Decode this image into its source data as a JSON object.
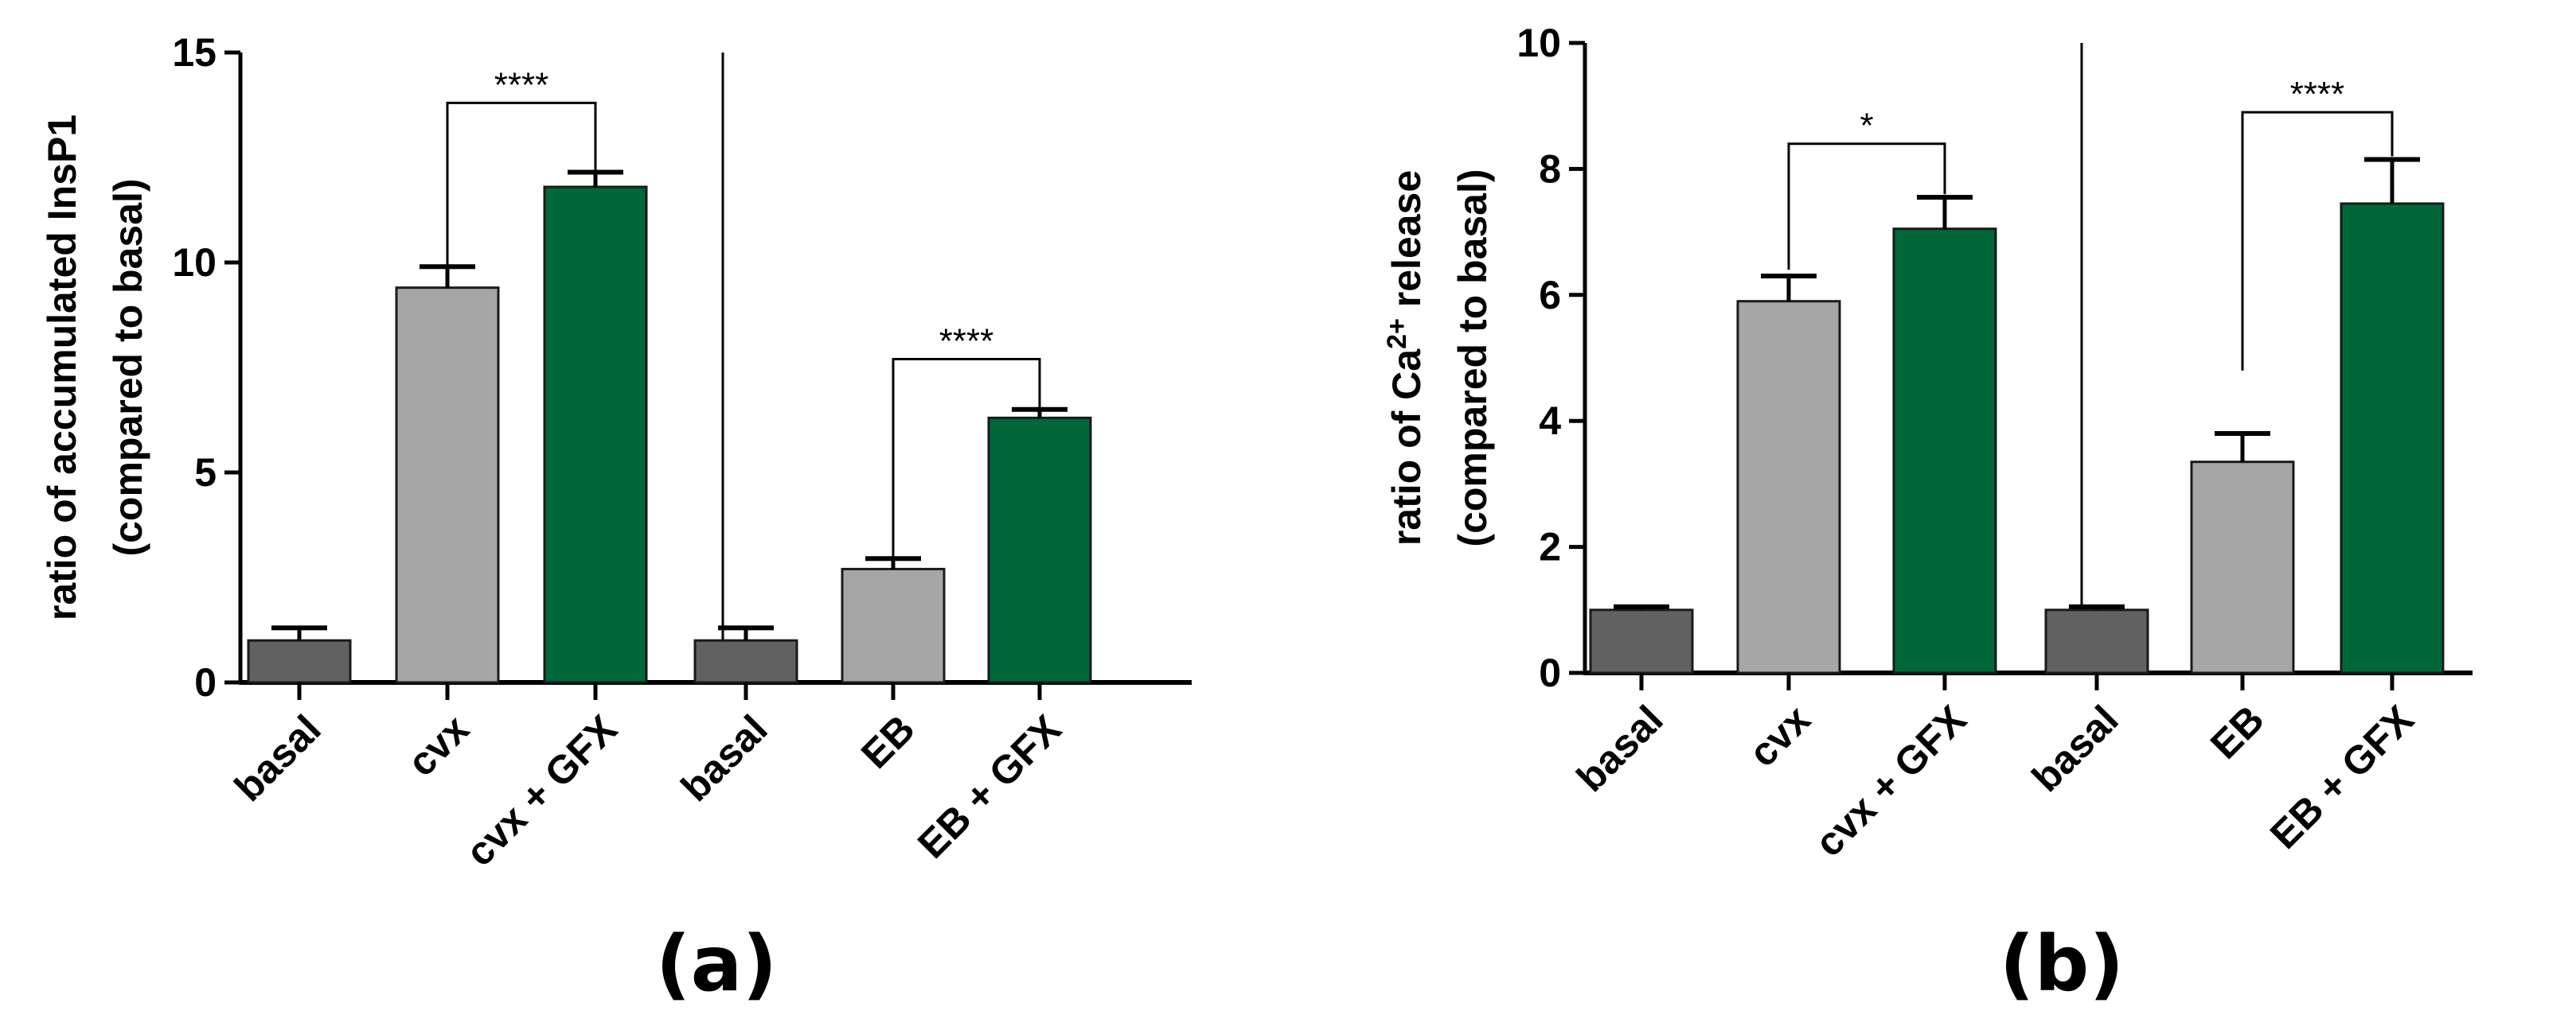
{
  "chart_data": [
    {
      "type": "bar",
      "panel_label": "(a)",
      "ylabel_line1": "ratio of accumulated InsP1",
      "ylabel_line2": "(compared to basal)",
      "ylim": [
        0,
        15
      ],
      "yticks": [
        0,
        5,
        10,
        15
      ],
      "categories": [
        "basal",
        "cvx",
        "cvx + GFX",
        "basal",
        "EB",
        "EB + GFX"
      ],
      "values": [
        1.0,
        9.4,
        11.8,
        1.0,
        2.7,
        6.3
      ],
      "errors": [
        0.3,
        0.5,
        0.35,
        0.3,
        0.25,
        0.2
      ],
      "bar_colors": [
        "#616161",
        "#a6a6a6",
        "#00673b",
        "#616161",
        "#a6a6a6",
        "#00673b"
      ],
      "group_separator_after_index": 2,
      "significance": [
        {
          "from": 1,
          "to": 2,
          "label": "****",
          "from_y": 9.9,
          "to_y": 12.2,
          "bracket_y": 13.8
        },
        {
          "from": 4,
          "to": 5,
          "label": "****",
          "from_y": 3.0,
          "to_y": 6.5,
          "bracket_y": 7.7
        }
      ]
    },
    {
      "type": "bar",
      "panel_label": "(b)",
      "ylabel_line1": "ratio of Ca",
      "ylabel_sup": "2+",
      "ylabel_line1_tail": " release",
      "ylabel_line2": "(compared to basal)",
      "ylim": [
        0,
        10
      ],
      "yticks": [
        0,
        2,
        4,
        6,
        8,
        10
      ],
      "categories": [
        "basal",
        "cvx",
        "cvx + GFX",
        "basal",
        "EB",
        "EB + GFX"
      ],
      "values": [
        1.0,
        5.9,
        7.05,
        1.0,
        3.35,
        7.45
      ],
      "errors": [
        0.05,
        0.4,
        0.5,
        0.05,
        0.45,
        0.7
      ],
      "bar_colors": [
        "#616161",
        "#a6a6a6",
        "#00673b",
        "#616161",
        "#a6a6a6",
        "#00673b"
      ],
      "group_separator_after_index": 2,
      "significance": [
        {
          "from": 1,
          "to": 2,
          "label": "*",
          "from_y": 6.4,
          "to_y": 7.6,
          "bracket_y": 8.4
        },
        {
          "from": 4,
          "to": 5,
          "label": "****",
          "from_y": 4.8,
          "to_y": 8.2,
          "bracket_y": 8.9
        }
      ]
    }
  ]
}
